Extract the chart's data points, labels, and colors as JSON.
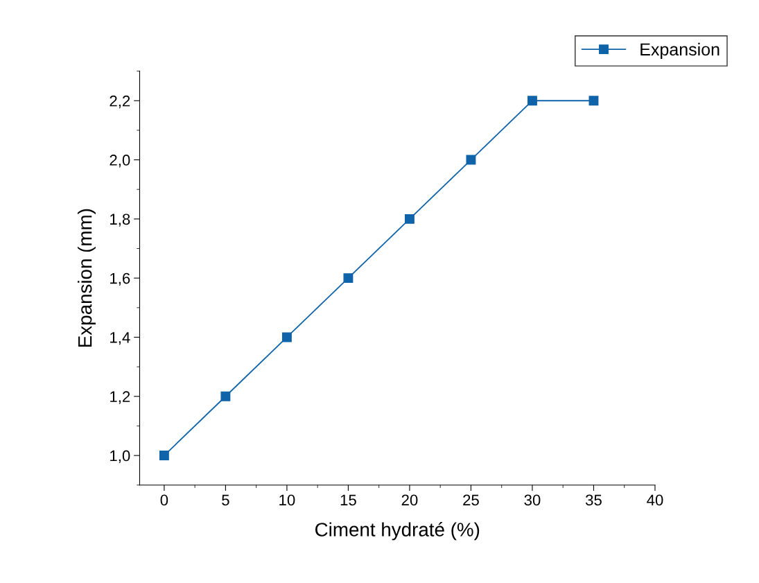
{
  "chart_data": {
    "type": "line",
    "xlabel": "Ciment hydraté (%)",
    "ylabel": "Expansion (mm)",
    "x": [
      0,
      5,
      10,
      15,
      20,
      25,
      30,
      35
    ],
    "series": [
      {
        "name": "Expansion",
        "color": "#0f63a8",
        "values": [
          1.0,
          1.2,
          1.4,
          1.6,
          1.8,
          2.0,
          2.2,
          2.2
        ]
      }
    ],
    "xlim": [
      -2,
      40
    ],
    "xticks": [
      0,
      5,
      10,
      15,
      20,
      25,
      30,
      35,
      40
    ],
    "ylim": [
      0.9,
      2.3
    ],
    "yticks": [
      {
        "value": 1.0,
        "label": "1,0"
      },
      {
        "value": 1.2,
        "label": "1,2"
      },
      {
        "value": 1.4,
        "label": "1,4"
      },
      {
        "value": 1.6,
        "label": "1,6"
      },
      {
        "value": 1.8,
        "label": "1,8"
      },
      {
        "value": 2.0,
        "label": "2,0"
      },
      {
        "value": 2.2,
        "label": "2,2"
      }
    ],
    "marker": "square",
    "line_style": "solid",
    "grid": false,
    "legend": "top right"
  }
}
